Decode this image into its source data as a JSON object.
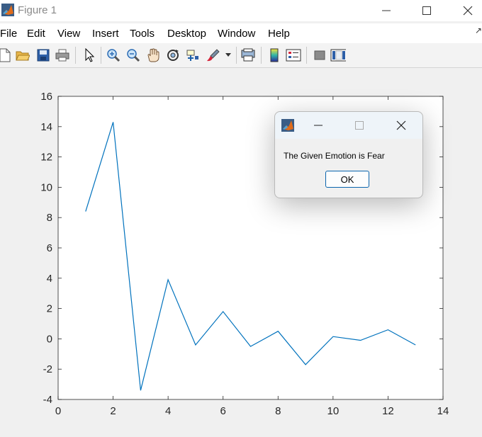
{
  "window": {
    "title": "Figure 1"
  },
  "menu": [
    "File",
    "Edit",
    "View",
    "Insert",
    "Tools",
    "Desktop",
    "Window",
    "Help"
  ],
  "toolbar_icons": [
    "new-figure-icon",
    "open-file-icon",
    "save-icon",
    "print-icon",
    "pointer-icon",
    "zoom-in-icon",
    "zoom-out-icon",
    "pan-hand-icon",
    "rotate-3d-icon",
    "data-cursor-icon",
    "brush-icon",
    "print-preview-icon",
    "colorbar-icon",
    "legend-icon",
    "hide-plot-tools-icon",
    "show-plot-tools-icon"
  ],
  "dialog": {
    "message": "The Given Emotion is Fear",
    "ok_label": "OK"
  },
  "chart_data": {
    "type": "line",
    "x": [
      1,
      2,
      3,
      4,
      5,
      6,
      7,
      8,
      9,
      10,
      11,
      12,
      13
    ],
    "series": [
      {
        "values": [
          8.4,
          14.3,
          -3.4,
          3.9,
          -0.4,
          1.8,
          -0.5,
          0.5,
          -1.7,
          0.15,
          -0.1,
          0.6,
          -0.4
        ],
        "color": "#0072bd"
      }
    ],
    "xlim": [
      0,
      14
    ],
    "ylim": [
      -4,
      16
    ],
    "xticks": [
      "0",
      "2",
      "4",
      "6",
      "8",
      "10",
      "12",
      "14"
    ],
    "yticks": [
      "-4",
      "-2",
      "0",
      "2",
      "4",
      "6",
      "8",
      "10",
      "12",
      "14",
      "16"
    ],
    "title": "",
    "xlabel": "",
    "ylabel": "",
    "grid": false
  }
}
